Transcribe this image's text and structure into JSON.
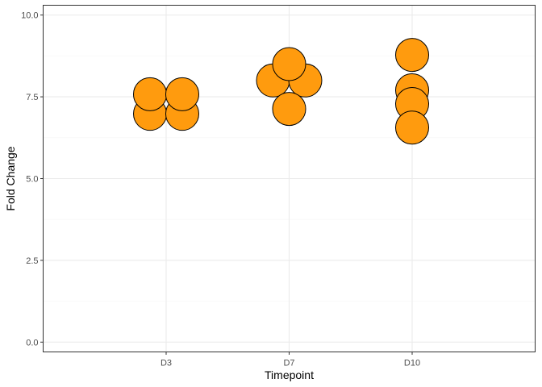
{
  "chart_data": {
    "type": "scatter",
    "subtype": "dotplot",
    "xlabel": "Timepoint",
    "ylabel": "Fold Change",
    "categories": [
      "D3",
      "D7",
      "D10"
    ],
    "ylim": [
      -0.3,
      10.3
    ],
    "yticks": [
      0.0,
      2.5,
      5.0,
      7.5,
      10.0
    ],
    "ytick_labels": [
      "0.0",
      "2.5",
      "5.0",
      "7.5",
      "10.0"
    ],
    "grid": true,
    "legend": "none",
    "points": [
      {
        "x": "D3",
        "y": 6.98
      },
      {
        "x": "D3",
        "y": 6.98
      },
      {
        "x": "D3",
        "y": 7.58
      },
      {
        "x": "D3",
        "y": 7.58
      },
      {
        "x": "D7",
        "y": 8.0
      },
      {
        "x": "D7",
        "y": 8.0
      },
      {
        "x": "D7",
        "y": 8.5
      },
      {
        "x": "D7",
        "y": 7.13
      },
      {
        "x": "D10",
        "y": 8.78
      },
      {
        "x": "D10",
        "y": 7.7
      },
      {
        "x": "D10",
        "y": 7.28
      },
      {
        "x": "D10",
        "y": 6.56
      }
    ],
    "colors": {
      "point_fill": "#FF9B0E",
      "point_stroke": "#000000",
      "panel_border": "#333333",
      "grid_major": "#EBEBEB",
      "grid_minor": "#F5F5F5"
    }
  }
}
